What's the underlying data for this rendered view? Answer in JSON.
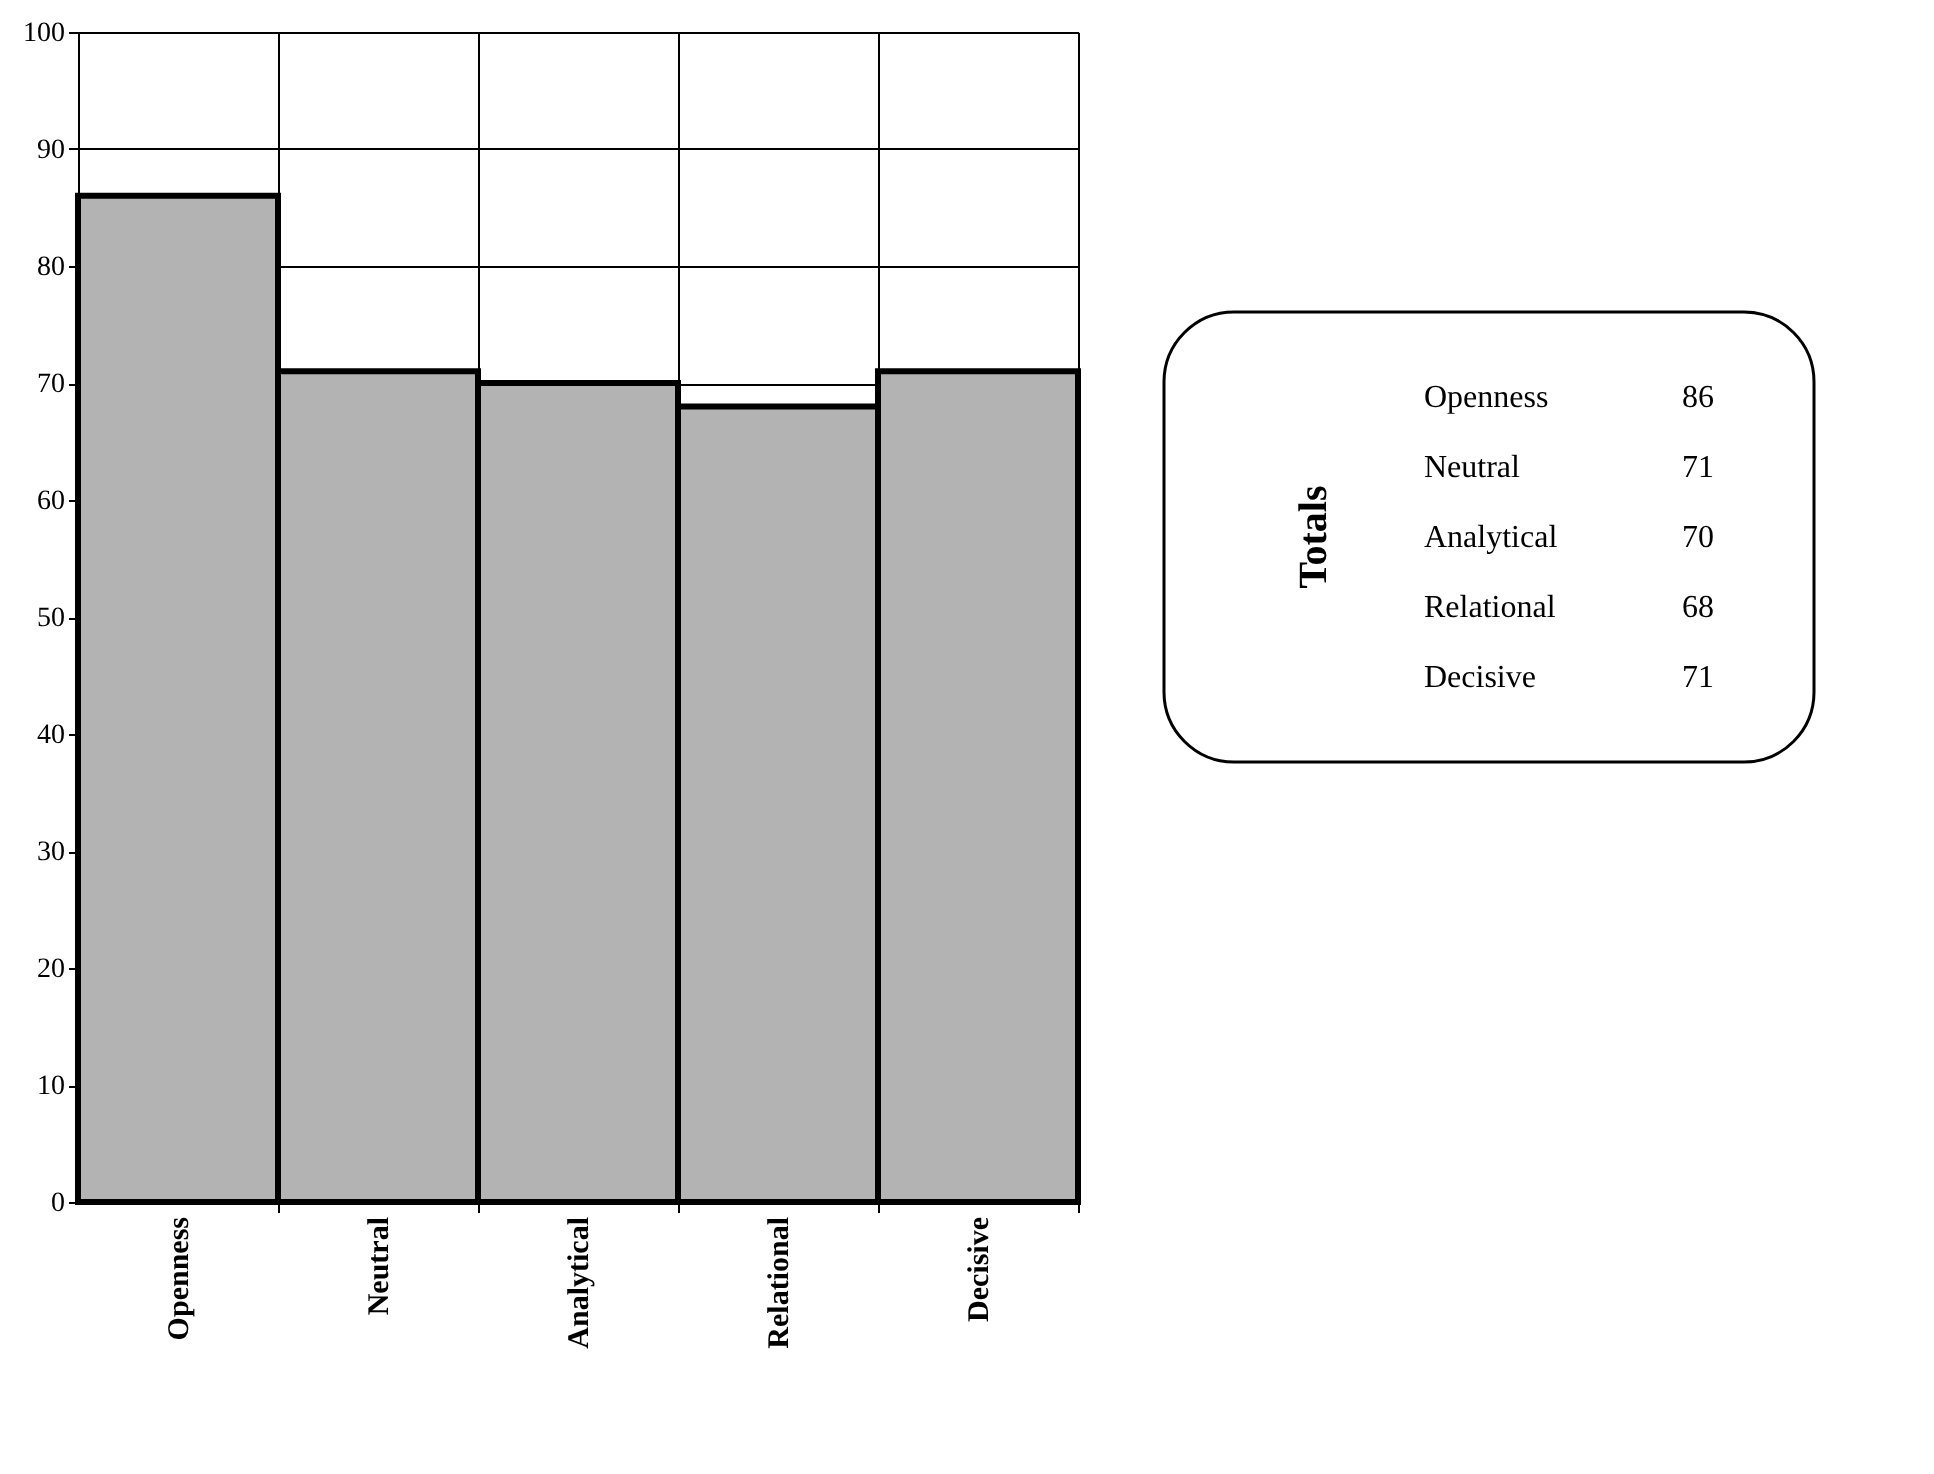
{
  "chart_data": [
    {
      "type": "bar",
      "categories": [
        "Openness",
        "Neutral",
        "Analytical",
        "Relational",
        "Decisive"
      ],
      "values": [
        86,
        71,
        70,
        68,
        71
      ],
      "color": "#b3b3b3",
      "ylim": [
        0,
        100
      ],
      "yticks": [
        0,
        10,
        20,
        30,
        40,
        50,
        60,
        70,
        80,
        90,
        100
      ],
      "grid": true
    },
    {
      "type": "other",
      "title": "Totals",
      "categories": [
        "Openness",
        "Neutral",
        "Analytical",
        "Relational",
        "Decisive"
      ],
      "values": [
        86,
        71,
        70,
        68,
        71
      ],
      "data_labels": true
    }
  ]
}
